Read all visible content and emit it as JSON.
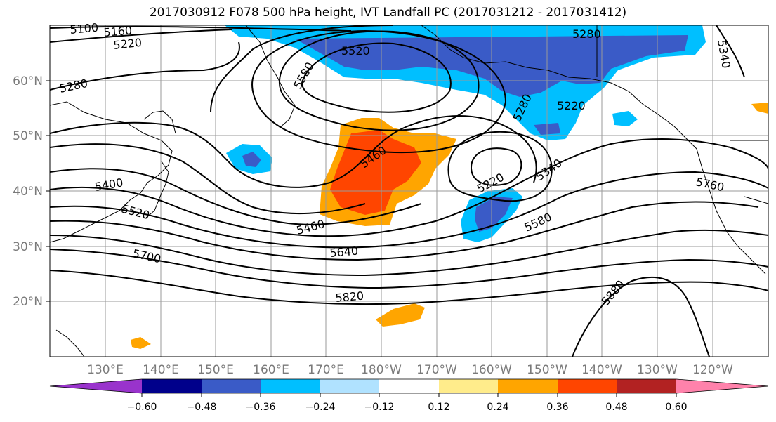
{
  "title": "2017030912 F078 500 hPa height, IVT Landfall PC (2017031212 - 2017031412)",
  "map": {
    "lat_labels": [
      "60°N",
      "50°N",
      "40°N",
      "30°N",
      "20°N"
    ],
    "lon_labels": [
      "130°E",
      "140°E",
      "150°E",
      "160°E",
      "170°E",
      "180°W",
      "170°W",
      "160°W",
      "150°W",
      "140°W",
      "130°W",
      "120°W"
    ],
    "contour_labels": [
      "5100",
      "5160",
      "5220",
      "5280",
      "5520",
      "5580",
      "5460",
      "5280",
      "5220",
      "5280",
      "5340",
      "5400",
      "5520",
      "5220",
      "5340",
      "5760",
      "5460",
      "5580",
      "5640",
      "5700",
      "5820",
      "5880"
    ]
  },
  "colorbar": {
    "ticks": [
      "−0.60",
      "−0.48",
      "−0.36",
      "−0.24",
      "−0.12",
      "0.12",
      "0.24",
      "0.36",
      "0.48",
      "0.60"
    ],
    "colors": [
      "#9933cc",
      "#00008b",
      "#3a5bc7",
      "#00bfff",
      "#b0e2ff",
      "#ffffff",
      "#ffec8b",
      "#ffa500",
      "#ff4500",
      "#b22222",
      "#ff82ab"
    ]
  }
}
